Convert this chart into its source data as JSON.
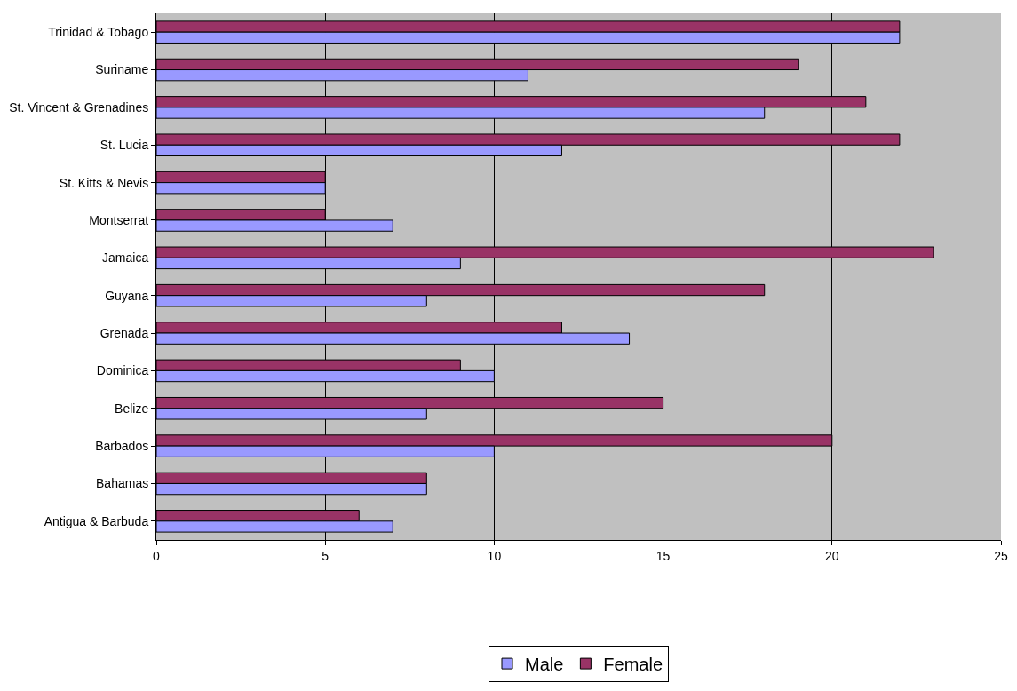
{
  "chart_data": {
    "type": "bar",
    "orientation": "horizontal",
    "categories": [
      "Trinidad & Tobago",
      "Suriname",
      "St. Vincent & Grenadines",
      "St. Lucia",
      "St. Kitts & Nevis",
      "Montserrat",
      "Jamaica",
      "Guyana",
      "Grenada",
      "Dominica",
      "Belize",
      "Barbados",
      "Bahamas",
      "Antigua & Barbuda"
    ],
    "series": [
      {
        "name": "Male",
        "color": "#9999ff",
        "values": [
          22,
          11,
          18,
          12,
          5,
          7,
          9,
          8,
          14,
          10,
          8,
          10,
          8,
          7
        ]
      },
      {
        "name": "Female",
        "color": "#993366",
        "values": [
          22,
          19,
          21,
          22,
          5,
          5,
          23,
          18,
          12,
          9,
          15,
          20,
          8,
          6
        ]
      }
    ],
    "xlim": [
      0,
      25
    ],
    "xticks": [
      0,
      5,
      10,
      15,
      20,
      25
    ],
    "grid": "x",
    "legend": "bottom"
  }
}
